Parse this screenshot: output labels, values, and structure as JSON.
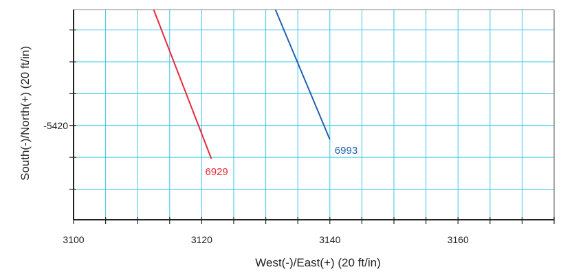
{
  "chart_data": {
    "type": "line",
    "xlabel": "West(-)/East(+) (20 ft/in)",
    "ylabel": "South(-)/North(+) (20 ft/in)",
    "xlim": [
      3100,
      3175
    ],
    "ylim": [
      -5434.8,
      -5401.8
    ],
    "x_tick_values": [
      3100,
      3120,
      3140,
      3160
    ],
    "x_tick_labels": [
      "3100",
      "3120",
      "3140",
      "3160"
    ],
    "y_tick_values": [
      -5420
    ],
    "y_tick_labels": [
      "-5420"
    ],
    "x_grid_step": 5,
    "y_grid_step": 5,
    "grid": true,
    "colors": {
      "grid": "#33c8e6",
      "axis": "#222222",
      "frame": "#888888"
    },
    "series": [
      {
        "color": "#e8283a",
        "end_label": "6929",
        "x": [
          3112.5,
          3121.5
        ],
        "y": [
          -5401.8,
          -5425.2
        ]
      },
      {
        "color": "#2060b0",
        "end_label": "6993",
        "x": [
          3131.5,
          3140.0
        ],
        "y": [
          -5401.8,
          -5422.2
        ]
      }
    ]
  }
}
